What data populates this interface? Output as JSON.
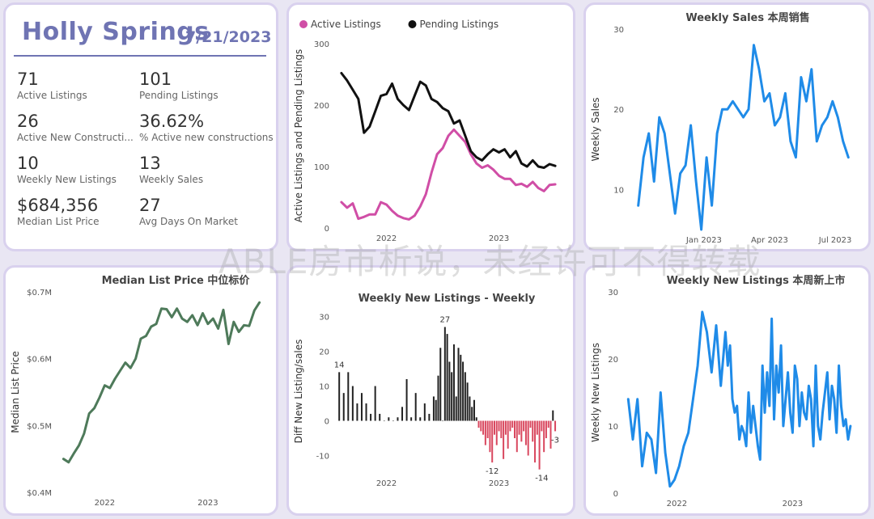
{
  "kpi": {
    "city": "Holly Springs",
    "date": "7/21/2023",
    "items": [
      {
        "value": "71",
        "label": "Active Listings"
      },
      {
        "value": "101",
        "label": "Pending Listings"
      },
      {
        "value": "26",
        "label": "Active New Constructi..."
      },
      {
        "value": "36.62%",
        "label": "% Active new constructions"
      },
      {
        "value": "10",
        "label": "Weekly New Listings"
      },
      {
        "value": "13",
        "label": "Weekly Sales"
      },
      {
        "value": "$684,356",
        "label": "Median List Price"
      },
      {
        "value": "27",
        "label": "Avg Days On Market"
      }
    ]
  },
  "watermark": "ABLE房市析说，未经许可不得转载",
  "chart_data": [
    {
      "id": "listings",
      "type": "line",
      "title": "",
      "ylabel": "Active Listings and Pending Listings",
      "ylim": [
        0,
        300
      ],
      "yticks": [
        0,
        100,
        200,
        300
      ],
      "xlim": [
        2021.55,
        2023.55
      ],
      "xticks": [
        {
          "v": 2022.0,
          "label": "2022"
        },
        {
          "v": 2023.0,
          "label": "2023"
        }
      ],
      "legend": "top-left",
      "series": [
        {
          "name": "Active Listings",
          "color": "#d04ea6",
          "x": [
            2021.6,
            2021.65,
            2021.7,
            2021.75,
            2021.8,
            2021.85,
            2021.9,
            2021.95,
            2022.0,
            2022.05,
            2022.1,
            2022.15,
            2022.2,
            2022.25,
            2022.3,
            2022.35,
            2022.4,
            2022.45,
            2022.5,
            2022.55,
            2022.6,
            2022.65,
            2022.7,
            2022.75,
            2022.8,
            2022.85,
            2022.9,
            2022.95,
            2023.0,
            2023.05,
            2023.1,
            2023.15,
            2023.2,
            2023.25,
            2023.3,
            2023.35,
            2023.4,
            2023.45,
            2023.5
          ],
          "y": [
            42,
            33,
            40,
            15,
            18,
            22,
            22,
            42,
            38,
            28,
            20,
            16,
            14,
            20,
            35,
            55,
            90,
            120,
            130,
            150,
            160,
            150,
            140,
            120,
            105,
            98,
            102,
            95,
            85,
            80,
            80,
            70,
            72,
            67,
            75,
            65,
            60,
            70,
            71
          ]
        },
        {
          "name": "Pending Listings",
          "color": "#111111",
          "x": [
            2021.6,
            2021.65,
            2021.7,
            2021.75,
            2021.8,
            2021.85,
            2021.9,
            2021.95,
            2022.0,
            2022.05,
            2022.1,
            2022.15,
            2022.2,
            2022.25,
            2022.3,
            2022.35,
            2022.4,
            2022.45,
            2022.5,
            2022.55,
            2022.6,
            2022.65,
            2022.7,
            2022.75,
            2022.8,
            2022.85,
            2022.9,
            2022.95,
            2023.0,
            2023.05,
            2023.1,
            2023.15,
            2023.2,
            2023.25,
            2023.3,
            2023.35,
            2023.4,
            2023.45,
            2023.5
          ],
          "y": [
            252,
            240,
            225,
            210,
            155,
            165,
            190,
            215,
            218,
            235,
            210,
            200,
            192,
            215,
            238,
            232,
            210,
            205,
            195,
            190,
            170,
            175,
            150,
            125,
            115,
            110,
            120,
            128,
            123,
            128,
            115,
            125,
            105,
            100,
            110,
            100,
            98,
            104,
            101
          ]
        }
      ]
    },
    {
      "id": "weekly-sales",
      "type": "line",
      "title": "Weekly Sales 本周销售",
      "ylabel": "Weekly Sales",
      "ylim": [
        5,
        30
      ],
      "yticks": [
        10,
        20,
        30
      ],
      "xlim": [
        2022.72,
        2023.58
      ],
      "xticks": [
        {
          "v": 2023.0,
          "label": "Jan 2023"
        },
        {
          "v": 2023.25,
          "label": "Apr 2023"
        },
        {
          "v": 2023.5,
          "label": "Jul 2023"
        }
      ],
      "series": [
        {
          "name": "",
          "color": "#1f8be8",
          "x": [
            2022.75,
            2022.77,
            2022.79,
            2022.81,
            2022.83,
            2022.85,
            2022.87,
            2022.89,
            2022.91,
            2022.93,
            2022.95,
            2022.97,
            2022.99,
            2023.01,
            2023.03,
            2023.05,
            2023.07,
            2023.09,
            2023.11,
            2023.13,
            2023.15,
            2023.17,
            2023.19,
            2023.21,
            2023.23,
            2023.25,
            2023.27,
            2023.29,
            2023.31,
            2023.33,
            2023.35,
            2023.37,
            2023.39,
            2023.41,
            2023.43,
            2023.45,
            2023.47,
            2023.49,
            2023.51,
            2023.53,
            2023.55
          ],
          "y": [
            8,
            14,
            17,
            11,
            19,
            17,
            12,
            7,
            12,
            13,
            18,
            11,
            5,
            14,
            8,
            17,
            20,
            20,
            21,
            20,
            19,
            20,
            28,
            25,
            21,
            22,
            18,
            19,
            22,
            16,
            14,
            24,
            21,
            25,
            16,
            18,
            19,
            21,
            19,
            16,
            14
          ]
        }
      ]
    },
    {
      "id": "median-list-price",
      "type": "line",
      "title": "Median List Price 中位标价",
      "ylabel": "Median List Price",
      "ylim": [
        0.4,
        0.7
      ],
      "yticks": [
        {
          "v": 0.4,
          "label": "$0.4M"
        },
        {
          "v": 0.5,
          "label": "$0.5M"
        },
        {
          "v": 0.6,
          "label": "$0.6M"
        },
        {
          "v": 0.7,
          "label": "$0.7M"
        }
      ],
      "xlim": [
        2021.55,
        2023.55
      ],
      "xticks": [
        {
          "v": 2022.0,
          "label": "2022"
        },
        {
          "v": 2023.0,
          "label": "2023"
        }
      ],
      "series": [
        {
          "name": "",
          "color": "#4e7a5a",
          "x": [
            2021.6,
            2021.65,
            2021.7,
            2021.75,
            2021.8,
            2021.85,
            2021.9,
            2021.95,
            2022.0,
            2022.05,
            2022.1,
            2022.15,
            2022.2,
            2022.25,
            2022.3,
            2022.35,
            2022.4,
            2022.45,
            2022.5,
            2022.55,
            2022.6,
            2022.65,
            2022.7,
            2022.75,
            2022.8,
            2022.85,
            2022.9,
            2022.95,
            2023.0,
            2023.05,
            2023.1,
            2023.15,
            2023.2,
            2023.25,
            2023.3,
            2023.35,
            2023.4,
            2023.45,
            2023.5
          ],
          "y": [
            0.45,
            0.445,
            0.458,
            0.47,
            0.488,
            0.518,
            0.526,
            0.542,
            0.56,
            0.556,
            0.57,
            0.582,
            0.594,
            0.586,
            0.6,
            0.63,
            0.634,
            0.648,
            0.652,
            0.675,
            0.674,
            0.662,
            0.675,
            0.66,
            0.655,
            0.665,
            0.65,
            0.668,
            0.652,
            0.66,
            0.645,
            0.673,
            0.622,
            0.655,
            0.64,
            0.65,
            0.649,
            0.672,
            0.684
          ]
        }
      ]
    },
    {
      "id": "diff-new-listings",
      "type": "bar",
      "title": "Weekly New Listings - Weekly",
      "ylabel": "Diff New Listing/sales",
      "ylim": [
        -15,
        32
      ],
      "yticks": [
        -10,
        0,
        10,
        20,
        30
      ],
      "xlim": [
        2021.55,
        2023.55
      ],
      "xticks": [
        {
          "v": 2022.0,
          "label": "2022"
        },
        {
          "v": 2023.0,
          "label": "2023"
        }
      ],
      "positive_color": "#222222",
      "negative_color": "#d9485f",
      "x": [
        2021.58,
        2021.62,
        2021.66,
        2021.7,
        2021.74,
        2021.78,
        2021.82,
        2021.86,
        2021.9,
        2021.94,
        2021.98,
        2022.02,
        2022.06,
        2022.1,
        2022.14,
        2022.18,
        2022.22,
        2022.26,
        2022.3,
        2022.34,
        2022.38,
        2022.42,
        2022.44,
        2022.46,
        2022.48,
        2022.5,
        2022.52,
        2022.54,
        2022.56,
        2022.58,
        2022.6,
        2022.62,
        2022.64,
        2022.66,
        2022.68,
        2022.7,
        2022.72,
        2022.74,
        2022.76,
        2022.78,
        2022.8,
        2022.82,
        2022.84,
        2022.86,
        2022.88,
        2022.9,
        2022.92,
        2022.94,
        2022.96,
        2022.98,
        2023.0,
        2023.02,
        2023.04,
        2023.06,
        2023.08,
        2023.1,
        2023.12,
        2023.14,
        2023.16,
        2023.18,
        2023.2,
        2023.22,
        2023.24,
        2023.26,
        2023.28,
        2023.3,
        2023.32,
        2023.34,
        2023.36,
        2023.38,
        2023.4,
        2023.42,
        2023.44,
        2023.46,
        2023.48,
        2023.5
      ],
      "values": [
        14,
        8,
        14,
        10,
        5,
        8,
        5,
        2,
        10,
        2,
        0,
        1,
        0,
        1,
        4,
        12,
        1,
        8,
        1,
        5,
        2,
        7,
        6,
        13,
        21,
        0,
        27,
        25,
        17,
        14,
        22,
        7,
        21,
        19,
        17,
        14,
        11,
        7,
        4,
        6,
        1,
        -2,
        -3,
        -4,
        -7,
        -5,
        -9,
        -12,
        -4,
        -7,
        -3,
        -5,
        -11,
        -4,
        -8,
        -3,
        -2,
        -5,
        -9,
        -4,
        -6,
        -3,
        -7,
        -10,
        -2,
        -6,
        -12,
        -4,
        -14,
        -3,
        -9,
        -5,
        -2,
        -8,
        3,
        -3
      ],
      "labels": [
        {
          "x": 2021.58,
          "y": 14,
          "text": "14"
        },
        {
          "x": 2022.52,
          "y": 27,
          "text": "27"
        },
        {
          "x": 2022.94,
          "y": -12,
          "text": "-12"
        },
        {
          "x": 2023.38,
          "y": -14,
          "text": "-14"
        },
        {
          "x": 2023.5,
          "y": -3,
          "text": "-3"
        }
      ]
    },
    {
      "id": "weekly-new-listings",
      "type": "line",
      "title": "Weekly New Listings 本周新上市",
      "ylabel": "Weekly New Listings",
      "ylim": [
        0,
        30
      ],
      "yticks": [
        0,
        10,
        20,
        30
      ],
      "xlim": [
        2021.55,
        2023.55
      ],
      "xticks": [
        {
          "v": 2022.0,
          "label": "2022"
        },
        {
          "v": 2023.0,
          "label": "2023"
        }
      ],
      "series": [
        {
          "name": "",
          "color": "#1f8be8",
          "x": [
            2021.58,
            2021.62,
            2021.66,
            2021.7,
            2021.74,
            2021.78,
            2021.82,
            2021.86,
            2021.9,
            2021.94,
            2021.98,
            2022.02,
            2022.06,
            2022.1,
            2022.14,
            2022.18,
            2022.22,
            2022.26,
            2022.3,
            2022.34,
            2022.38,
            2022.42,
            2022.44,
            2022.46,
            2022.48,
            2022.5,
            2022.52,
            2022.54,
            2022.56,
            2022.58,
            2022.6,
            2022.62,
            2022.64,
            2022.66,
            2022.68,
            2022.7,
            2022.72,
            2022.74,
            2022.76,
            2022.78,
            2022.8,
            2022.82,
            2022.84,
            2022.86,
            2022.88,
            2022.9,
            2022.92,
            2022.94,
            2022.96,
            2022.98,
            2023.0,
            2023.02,
            2023.04,
            2023.06,
            2023.08,
            2023.1,
            2023.12,
            2023.14,
            2023.16,
            2023.18,
            2023.2,
            2023.22,
            2023.24,
            2023.26,
            2023.28,
            2023.3,
            2023.32,
            2023.34,
            2023.36,
            2023.38,
            2023.4,
            2023.42,
            2023.44,
            2023.46,
            2023.48,
            2023.5
          ],
          "y": [
            14,
            8,
            14,
            4,
            9,
            8,
            3,
            15,
            6,
            1,
            2,
            4,
            7,
            9,
            14,
            19,
            27,
            24,
            18,
            25,
            16,
            24,
            19,
            22,
            14,
            12,
            13,
            8,
            10,
            9,
            7,
            15,
            9,
            13,
            10,
            7,
            5,
            19,
            12,
            18,
            13,
            26,
            11,
            19,
            15,
            22,
            10,
            14,
            18,
            12,
            9,
            19,
            17,
            10,
            15,
            12,
            11,
            16,
            14,
            7,
            19,
            10,
            8,
            12,
            15,
            18,
            11,
            16,
            14,
            9,
            19,
            13,
            10,
            11,
            8,
            10
          ]
        }
      ]
    }
  ]
}
